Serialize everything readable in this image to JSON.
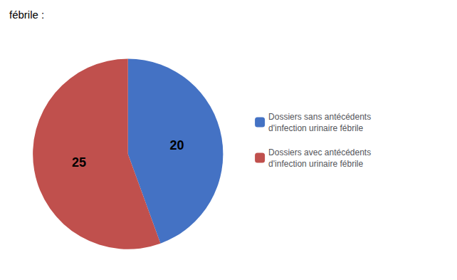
{
  "chart_data": {
    "type": "pie",
    "title": "fébrile :",
    "categories": [
      "Dossiers sans antécédents\nd'infection urinaire fébrile",
      "Dossiers avec antécédents\nd'infection urinaire fébrile"
    ],
    "values": [
      20,
      25
    ],
    "colors": [
      "#4472C4",
      "#C0504D"
    ],
    "data_labels": true,
    "legend": "right"
  }
}
